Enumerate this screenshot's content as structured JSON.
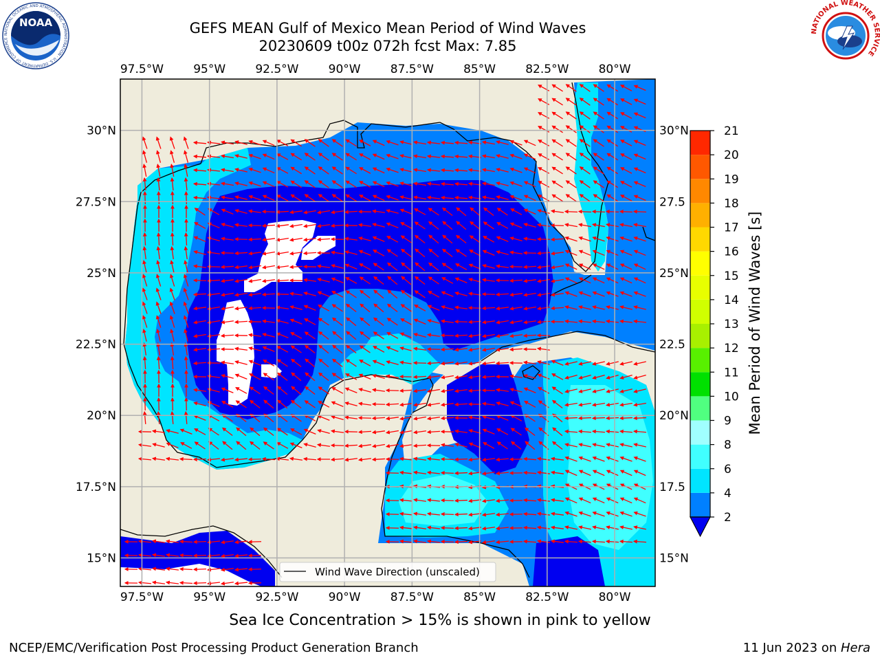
{
  "header": {
    "title_line1": "GEFS MEAN Gulf of Mexico Mean Period of Wind Waves",
    "title_line2": "20230609 t00z 072h fcst   Max: 7.85"
  },
  "logos": {
    "noaa": {
      "text": "NOAA",
      "ring_text": "NATIONAL OCEANIC AND ATMOSPHERIC ADMINISTRATION · U.S. DEPARTMENT OF COMMERCE"
    },
    "nws": {
      "ring_text": "NATIONAL WEATHER SERVICE"
    }
  },
  "map": {
    "lon_range": [
      -98.3,
      -78.5
    ],
    "lat_range": [
      14.0,
      31.8
    ],
    "lon_ticks": [
      {
        "value": -97.5,
        "label": "97.5°W"
      },
      {
        "value": -95,
        "label": "95°W"
      },
      {
        "value": -92.5,
        "label": "92.5°W"
      },
      {
        "value": -90,
        "label": "90°W"
      },
      {
        "value": -87.5,
        "label": "87.5°W"
      },
      {
        "value": -85,
        "label": "85°W"
      },
      {
        "value": -82.5,
        "label": "82.5°W"
      },
      {
        "value": -80,
        "label": "80°W"
      }
    ],
    "lat_ticks": [
      {
        "value": 15,
        "label": "15°N"
      },
      {
        "value": 17.5,
        "label": "17.5°N"
      },
      {
        "value": 20,
        "label": "20°N"
      },
      {
        "value": 22.5,
        "label": "22.5°N"
      },
      {
        "value": 25,
        "label": "25°N"
      },
      {
        "value": 27.5,
        "label": "27.5°N"
      },
      {
        "value": 30,
        "label": "30°N"
      }
    ],
    "lat_ticks_right": [
      {
        "value": 15,
        "label": "15°N"
      },
      {
        "value": 17.5,
        "label": "17.5"
      },
      {
        "value": 20,
        "label": "20°N"
      },
      {
        "value": 22.5,
        "label": "22.5"
      },
      {
        "value": 25,
        "label": "25°N"
      },
      {
        "value": 27.5,
        "label": "27.5"
      },
      {
        "value": 30,
        "label": "30°N"
      }
    ],
    "legend_label": "Wind Wave Direction (unscaled)",
    "land_color": "#efecdc",
    "arrow_color": "#ff0000"
  },
  "colorbar": {
    "label": "Mean Period of Wind Waves [s]",
    "boundaries": [
      2,
      4,
      6,
      8,
      9,
      10,
      11,
      12,
      13,
      14,
      15,
      16,
      17,
      18,
      19,
      20,
      21
    ],
    "colors": [
      "#0080ff",
      "#00e5ff",
      "#40ffff",
      "#a0ffff",
      "#50ff80",
      "#00e000",
      "#58f000",
      "#a8f000",
      "#d0ff00",
      "#e8ff00",
      "#ffff00",
      "#ffd800",
      "#ffb000",
      "#ff8800",
      "#ff5800",
      "#ff2800"
    ],
    "under_color": "#0000f0",
    "tick_labels": [
      "2",
      "4",
      "6",
      "8",
      "9",
      "10",
      "11",
      "12",
      "13",
      "14",
      "15",
      "16",
      "17",
      "18",
      "19",
      "20",
      "21"
    ]
  },
  "footer": {
    "note": "Sea Ice Concentration > 15% is shown in pink to yellow",
    "credit": "NCEP/EMC/Verification Post Processing Product Generation Branch",
    "date_prefix": "11 Jun 2023 on ",
    "date_host": "Hera"
  }
}
